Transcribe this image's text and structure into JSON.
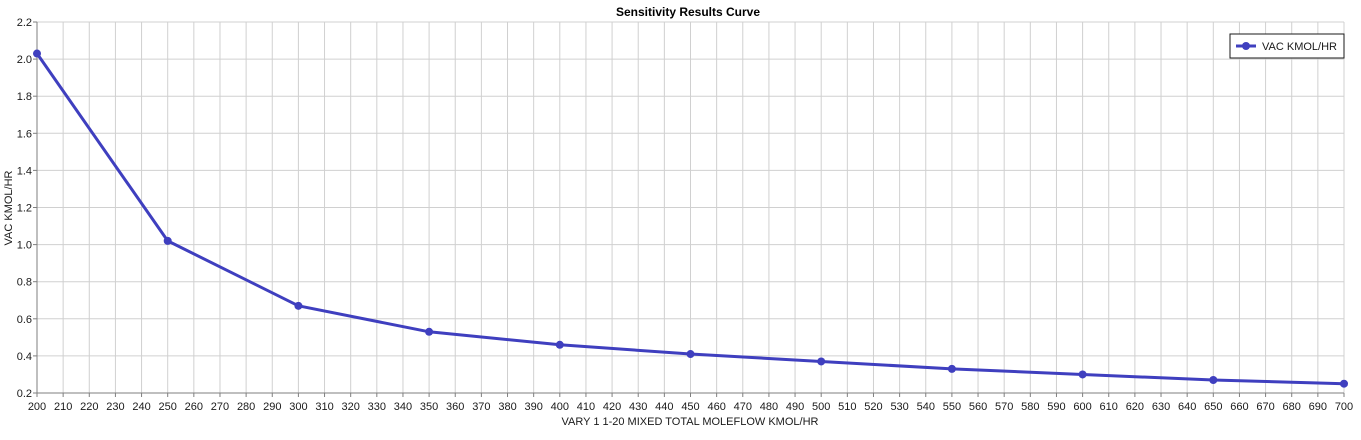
{
  "chart_data": {
    "type": "line",
    "title": "Sensitivity Results Curve",
    "xlabel": "VARY   1 1-20 MIXED TOTAL MOLEFLOW KMOL/HR",
    "ylabel": "VAC KMOL/HR",
    "xlim": [
      200,
      700
    ],
    "ylim": [
      0.2,
      2.2
    ],
    "x_ticks": [
      200,
      210,
      220,
      230,
      240,
      250,
      260,
      270,
      280,
      290,
      300,
      310,
      320,
      330,
      340,
      350,
      360,
      370,
      380,
      390,
      400,
      410,
      420,
      430,
      440,
      450,
      460,
      470,
      480,
      490,
      500,
      510,
      520,
      530,
      540,
      550,
      560,
      570,
      580,
      590,
      600,
      610,
      620,
      630,
      640,
      650,
      660,
      670,
      680,
      690,
      700
    ],
    "y_ticks": [
      "0.2",
      "0.4",
      "0.6",
      "0.8",
      "1.0",
      "1.2",
      "1.4",
      "1.6",
      "1.8",
      "2.0",
      "2.2"
    ],
    "grid": true,
    "legend_position": "top-right",
    "series": [
      {
        "name": "VAC KMOL/HR",
        "color": "#3f3fbf",
        "marker": "circle",
        "x": [
          200,
          250,
          300,
          350,
          400,
          450,
          500,
          550,
          600,
          650,
          700
        ],
        "y": [
          2.03,
          1.02,
          0.67,
          0.53,
          0.46,
          0.41,
          0.37,
          0.33,
          0.3,
          0.27,
          0.25
        ]
      }
    ]
  },
  "colors": {
    "grid": "#d0d0d0",
    "axis": "#7f7f7f",
    "series": "#3f3fbf"
  }
}
